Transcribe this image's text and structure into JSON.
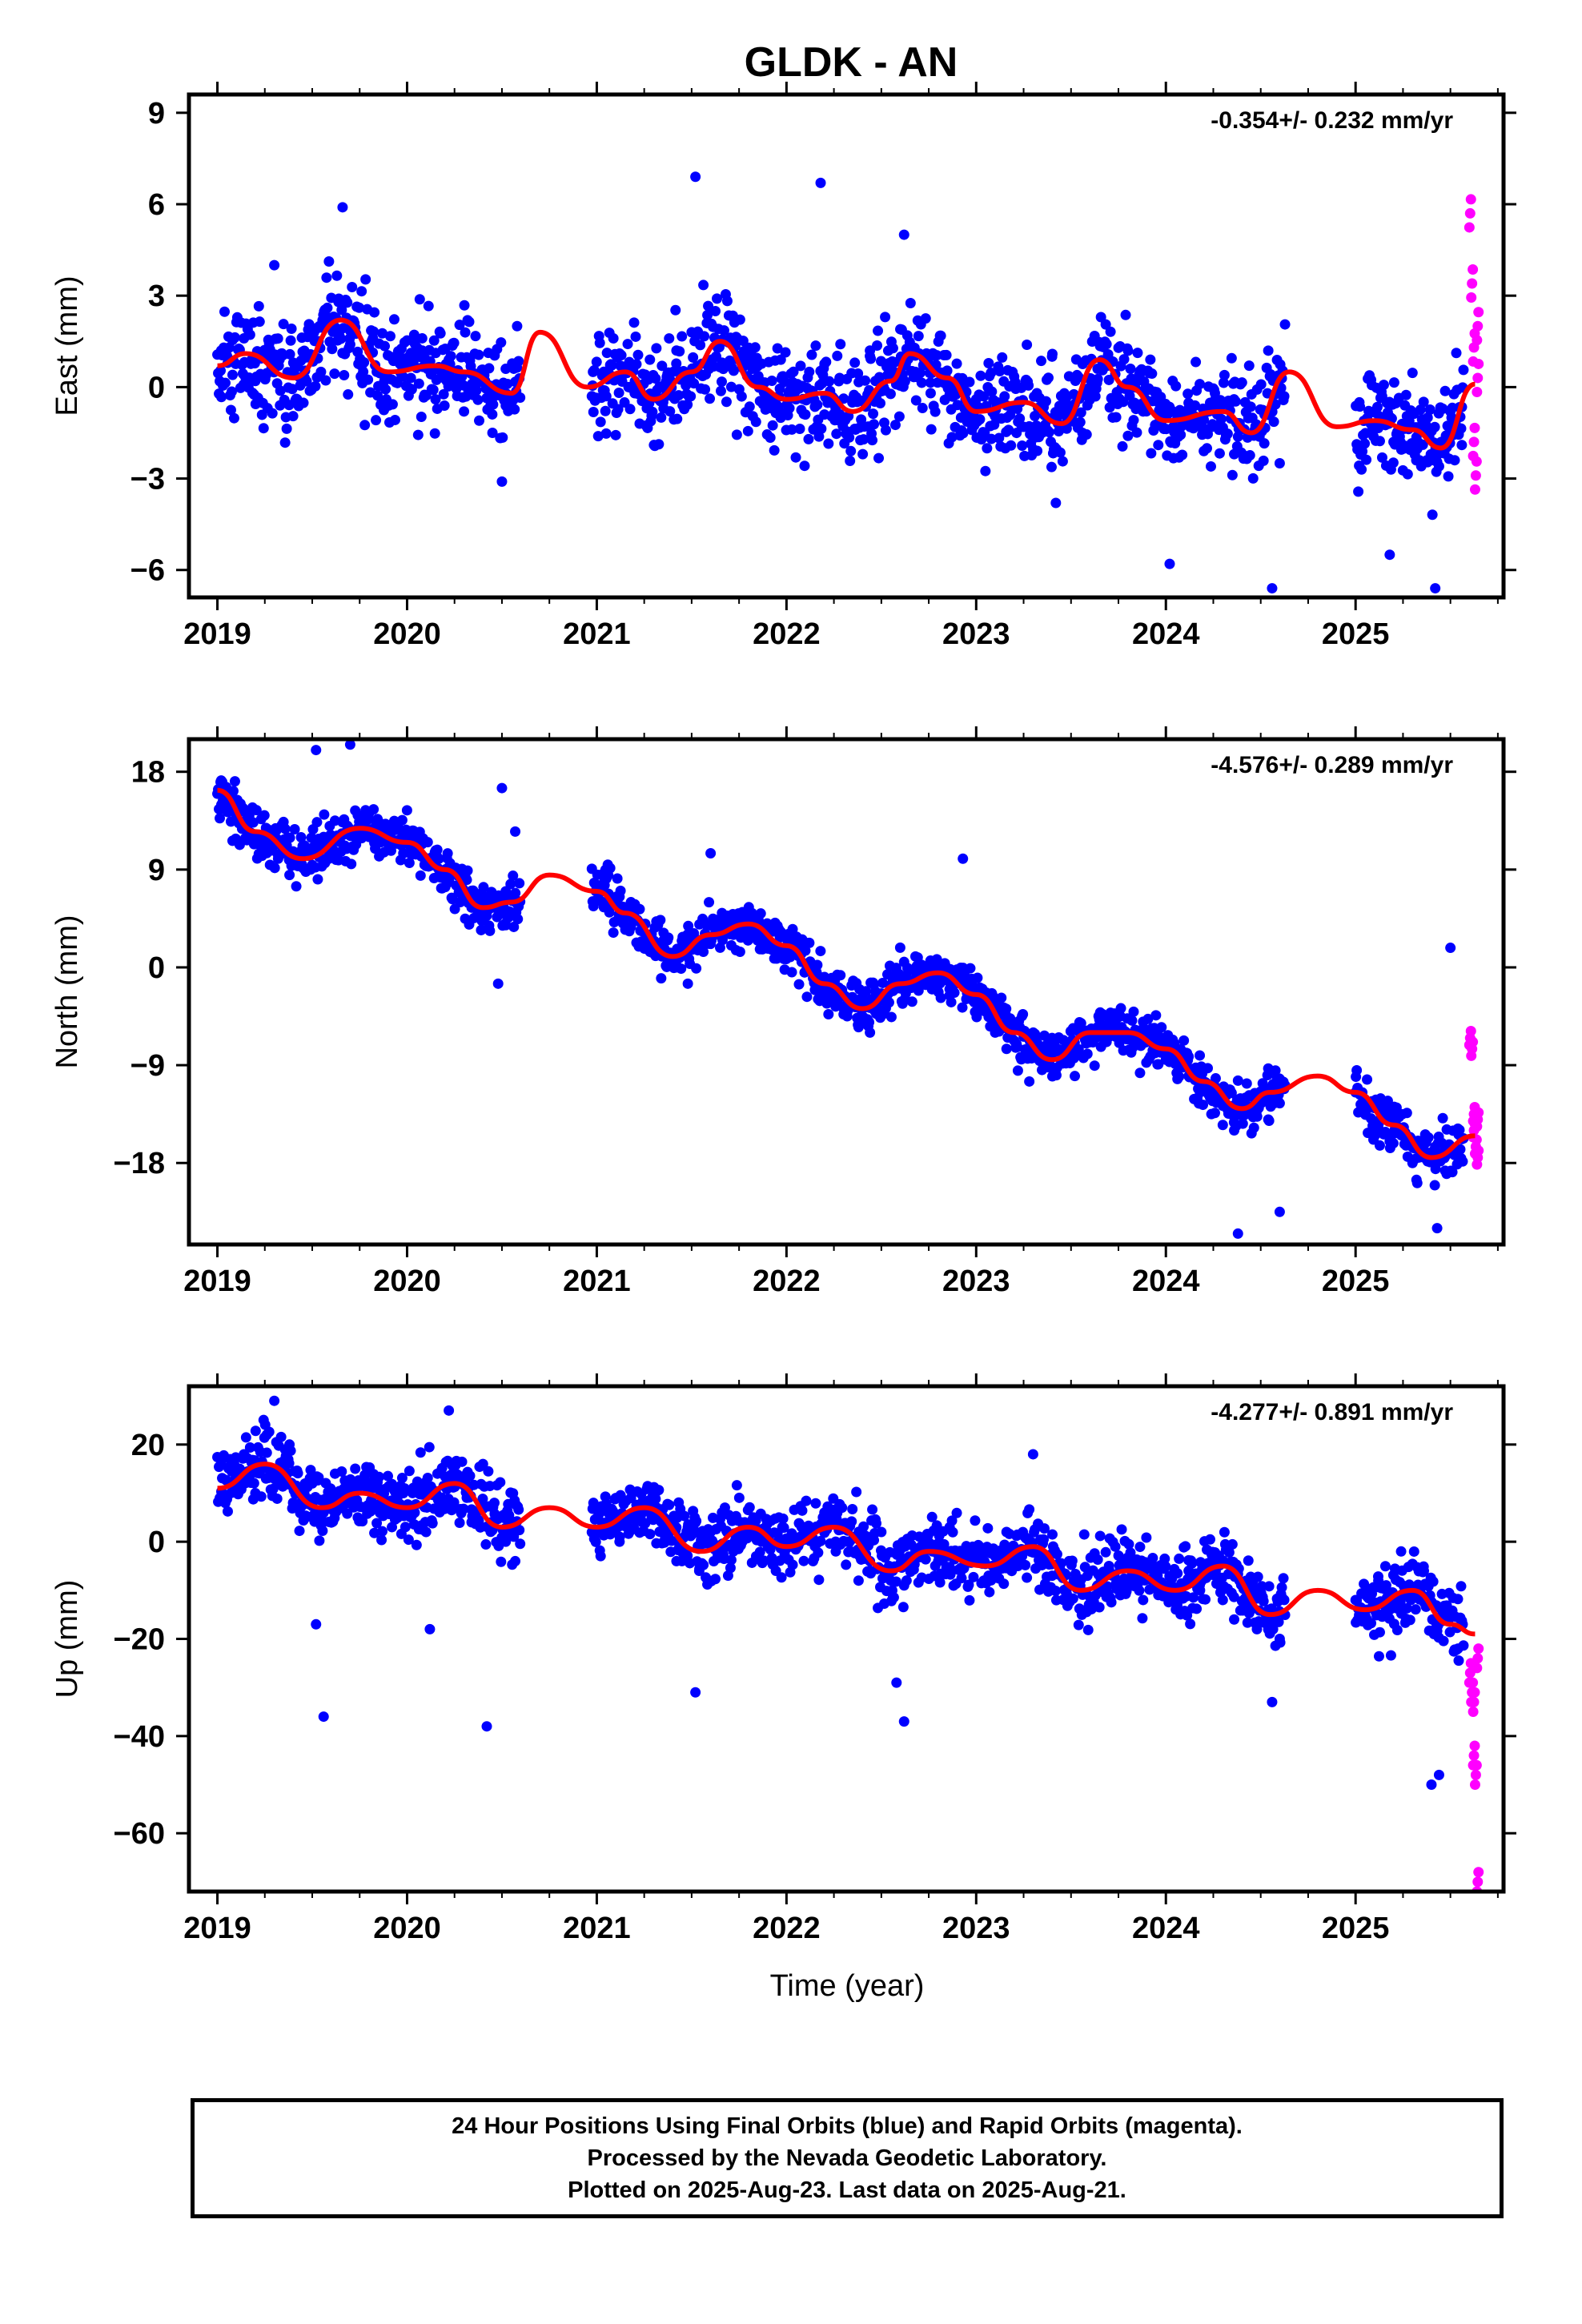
{
  "title": "GLDK - AN",
  "xlabel": "Time (year)",
  "caption": [
    "24 Hour Positions Using Final Orbits (blue) and Rapid Orbits (magenta).",
    "Processed by the Nevada Geodetic Laboratory.",
    "Plotted on 2025-Aug-23. Last data on 2025-Aug-21."
  ],
  "colors": {
    "final": "#0000ff",
    "rapid": "#ff00ff",
    "model": "#ff0000",
    "axis": "#000000"
  },
  "chart_data": [
    {
      "type": "scatter",
      "component": "East",
      "ylabel": "East (mm)",
      "rate": "-0.354+/- 0.232 mm/yr",
      "xlim": [
        2018.85,
        2025.78
      ],
      "ylim": [
        -6.9,
        9.6
      ],
      "xticks": [
        2019,
        2020,
        2021,
        2022,
        2023,
        2024,
        2025
      ],
      "yticks": [
        -6,
        -3,
        0,
        3,
        6,
        9
      ],
      "grid": false,
      "model": {
        "name": "model fit",
        "x": [
          2019.0,
          2019.15,
          2019.4,
          2019.65,
          2019.9,
          2020.15,
          2020.3,
          2020.55,
          2020.7,
          2020.95,
          2021.15,
          2021.3,
          2021.5,
          2021.65,
          2021.85,
          2022.0,
          2022.2,
          2022.35,
          2022.55,
          2022.65,
          2022.85,
          2023.0,
          2023.25,
          2023.45,
          2023.65,
          2023.8,
          2024.0,
          2024.3,
          2024.45,
          2024.65,
          2024.9,
          2025.1,
          2025.3,
          2025.45,
          2025.63
        ],
        "y": [
          0.7,
          1.1,
          0.3,
          2.2,
          0.5,
          0.7,
          0.5,
          -0.2,
          1.8,
          0.0,
          0.5,
          -0.4,
          0.5,
          1.5,
          0.0,
          -0.4,
          -0.2,
          -0.8,
          0.2,
          1.1,
          0.3,
          -0.8,
          -0.5,
          -1.2,
          0.9,
          0.0,
          -1.1,
          -0.8,
          -1.5,
          0.5,
          -1.3,
          -1.1,
          -1.4,
          -2.0,
          0.1
        ]
      },
      "final_points": {
        "x": [
          2019.02,
          2019.08,
          2019.14,
          2019.2,
          2019.27,
          2019.33,
          2019.4,
          2019.46,
          2019.52,
          2019.58,
          2019.64,
          2019.7,
          2019.76,
          2019.82,
          2019.88,
          2019.95,
          2020.02,
          2020.08,
          2020.15,
          2020.22,
          2020.3,
          2020.38,
          2020.45,
          2020.52,
          2020.58,
          2020.98,
          2021.05,
          2021.12,
          2021.2,
          2021.28,
          2021.35,
          2021.42,
          2021.5,
          2021.58,
          2021.66,
          2021.74,
          2021.82,
          2021.9,
          2021.97,
          2022.05,
          2022.12,
          2022.2,
          2022.28,
          2022.36,
          2022.44,
          2022.52,
          2022.6,
          2022.68,
          2022.76,
          2022.84,
          2022.92,
          2023.0,
          2023.08,
          2023.16,
          2023.24,
          2023.32,
          2023.4,
          2023.48,
          2023.56,
          2023.64,
          2023.72,
          2023.8,
          2023.88,
          2023.96,
          2024.04,
          2024.12,
          2024.2,
          2024.28,
          2024.36,
          2024.44,
          2024.52,
          2024.6,
          2025.02,
          2025.08,
          2025.14,
          2025.2,
          2025.26,
          2025.32,
          2025.38,
          2025.44,
          2025.5,
          2025.56,
          2019.3,
          2019.66,
          2020.5,
          2021.52,
          2022.18,
          2022.62,
          2023.42,
          2024.02,
          2024.56,
          2025.18,
          2025.42
        ],
        "y": [
          1.2,
          0.4,
          1.6,
          0.2,
          1.0,
          -0.6,
          0.8,
          0.3,
          1.9,
          2.6,
          2.9,
          1.4,
          0.7,
          1.6,
          0.2,
          0.9,
          0.3,
          1.2,
          -0.4,
          0.9,
          -0.8,
          -1.1,
          -1.5,
          0.6,
          2.0,
          0.5,
          -0.3,
          1.1,
          -0.2,
          0.9,
          -0.5,
          1.2,
          1.8,
          2.1,
          0.8,
          1.6,
          0.6,
          -0.6,
          0.9,
          -0.4,
          0.5,
          -0.9,
          0.3,
          0.8,
          1.2,
          2.3,
          1.9,
          0.5,
          -0.2,
          0.1,
          -1.0,
          -0.4,
          -1.7,
          -0.6,
          -1.3,
          -0.2,
          1.0,
          -0.3,
          -1.5,
          0.6,
          -1.0,
          -1.6,
          -0.8,
          -1.9,
          -1.3,
          -0.7,
          -2.1,
          -1.4,
          -2.2,
          -1.6,
          -0.9,
          -2.5,
          -0.5,
          -1.2,
          -0.3,
          -1.8,
          -0.6,
          -2.4,
          -1.0,
          -2.6,
          -0.8,
          -1.9,
          4.0,
          5.9,
          -3.1,
          6.9,
          6.7,
          5.0,
          -3.8,
          -5.8,
          -6.6,
          -5.5,
          -6.6
        ]
      },
      "rapid_points": {
        "x": [
          2025.6,
          2025.61,
          2025.62,
          2025.62,
          2025.63,
          2025.64,
          2025.64
        ],
        "y": [
          5.7,
          3.4,
          1.3,
          -1.8,
          -2.9,
          0.3,
          2.0
        ]
      }
    },
    {
      "type": "scatter",
      "component": "North",
      "ylabel": "North (mm)",
      "rate": "-4.576+/- 0.289 mm/yr",
      "xlim": [
        2018.85,
        2025.78
      ],
      "ylim": [
        -25.5,
        21
      ],
      "xticks": [
        2019,
        2020,
        2021,
        2022,
        2023,
        2024,
        2025
      ],
      "yticks": [
        -18,
        -9,
        0,
        9,
        18
      ],
      "grid": false,
      "model": {
        "name": "model fit",
        "x": [
          2019.0,
          2019.2,
          2019.45,
          2019.75,
          2020.0,
          2020.2,
          2020.4,
          2020.55,
          2020.75,
          2021.0,
          2021.15,
          2021.4,
          2021.6,
          2021.8,
          2022.0,
          2022.2,
          2022.4,
          2022.6,
          2022.8,
          2023.0,
          2023.2,
          2023.4,
          2023.6,
          2023.8,
          2024.0,
          2024.2,
          2024.4,
          2024.55,
          2024.8,
          2025.0,
          2025.2,
          2025.4,
          2025.63
        ],
        "y": [
          16.3,
          12.5,
          10.0,
          12.8,
          11.5,
          9.0,
          5.5,
          6.0,
          8.5,
          7.0,
          5.0,
          1.0,
          3.0,
          4.0,
          2.0,
          -1.5,
          -3.8,
          -1.5,
          -0.5,
          -2.5,
          -6.0,
          -8.5,
          -6.0,
          -6.0,
          -7.5,
          -10.5,
          -13.0,
          -11.5,
          -10.0,
          -11.5,
          -14.5,
          -17.5,
          -15.5
        ]
      },
      "final_points": {
        "x": [
          2019.02,
          2019.06,
          2019.1,
          2019.15,
          2019.2,
          2019.26,
          2019.32,
          2019.38,
          2019.44,
          2019.5,
          2019.56,
          2019.62,
          2019.68,
          2019.74,
          2019.8,
          2019.86,
          2019.92,
          2019.98,
          2020.04,
          2020.1,
          2020.16,
          2020.22,
          2020.28,
          2020.34,
          2020.4,
          2020.46,
          2020.52,
          2020.57,
          2021.0,
          2021.06,
          2021.12,
          2021.18,
          2021.24,
          2021.3,
          2021.36,
          2021.42,
          2021.48,
          2021.54,
          2021.6,
          2021.66,
          2021.72,
          2021.78,
          2021.84,
          2021.9,
          2021.96,
          2022.02,
          2022.08,
          2022.14,
          2022.2,
          2022.26,
          2022.32,
          2022.38,
          2022.44,
          2022.5,
          2022.56,
          2022.62,
          2022.68,
          2022.74,
          2022.8,
          2022.86,
          2022.92,
          2022.98,
          2023.04,
          2023.1,
          2023.16,
          2023.22,
          2023.28,
          2023.34,
          2023.4,
          2023.46,
          2023.52,
          2023.58,
          2023.64,
          2023.7,
          2023.76,
          2023.82,
          2023.88,
          2023.94,
          2024.0,
          2024.06,
          2024.12,
          2024.18,
          2024.24,
          2024.3,
          2024.36,
          2024.42,
          2024.48,
          2024.54,
          2024.6,
          2025.0,
          2025.06,
          2025.12,
          2025.18,
          2025.24,
          2025.3,
          2025.36,
          2025.42,
          2025.48,
          2025.54,
          2019.52,
          2019.7,
          2020.48,
          2020.5,
          2021.6,
          2022.93,
          2024.38,
          2024.6,
          2025.43,
          2025.5
        ],
        "y": [
          17.2,
          15.0,
          14.2,
          13.0,
          12.0,
          11.5,
          10.0,
          8.5,
          9.5,
          11.0,
          12.0,
          13.5,
          12.5,
          14.0,
          12.0,
          11.5,
          12.5,
          10.5,
          11.0,
          9.5,
          10.0,
          8.0,
          6.0,
          5.5,
          4.5,
          5.5,
          7.0,
          12.5,
          7.5,
          8.5,
          6.5,
          6.0,
          4.0,
          2.0,
          1.0,
          0.0,
          -1.5,
          2.5,
          4.0,
          5.0,
          3.0,
          4.5,
          3.0,
          2.5,
          3.5,
          1.0,
          0.5,
          -1.0,
          -2.5,
          -3.0,
          -4.5,
          -5.5,
          -6.0,
          -3.0,
          -1.0,
          0.5,
          1.0,
          -0.5,
          0.0,
          -2.0,
          -1.5,
          -3.0,
          -4.0,
          -6.0,
          -7.5,
          -9.5,
          -10.5,
          -8.0,
          -6.5,
          -8.5,
          -10.0,
          -7.0,
          -5.5,
          -6.0,
          -4.5,
          -6.5,
          -5.0,
          -7.5,
          -8.5,
          -9.0,
          -10.0,
          -11.5,
          -13.5,
          -14.5,
          -15.0,
          -12.0,
          -13.0,
          -14.0,
          -12.5,
          -11.5,
          -13.0,
          -14.5,
          -16.0,
          -15.0,
          -18.0,
          -17.5,
          -16.5,
          -19.0,
          -17.0,
          20.0,
          20.5,
          -1.5,
          16.5,
          10.5,
          10.0,
          -24.5,
          -22.5,
          -24.0,
          1.8
        ],
        "rapid_note": ""
      },
      "rapid_points": {
        "x": [
          2025.6,
          2025.61,
          2025.62,
          2025.62,
          2025.63,
          2025.64,
          2025.64
        ],
        "y": [
          -6.5,
          -7.5,
          -13.5,
          -15.0,
          -16.5,
          -17.5,
          -14.0
        ]
      }
    },
    {
      "type": "scatter",
      "component": "Up",
      "ylabel": "Up (mm)",
      "rate": "-4.277+/- 0.891 mm/yr",
      "xlim": [
        2018.85,
        2025.78
      ],
      "ylim": [
        -72,
        32
      ],
      "xticks": [
        2019,
        2020,
        2021,
        2022,
        2023,
        2024,
        2025
      ],
      "yticks": [
        -60,
        -40,
        -20,
        0,
        20
      ],
      "grid": false,
      "model": {
        "name": "model fit",
        "x": [
          2019.0,
          2019.25,
          2019.55,
          2019.75,
          2020.0,
          2020.25,
          2020.5,
          2020.75,
          2021.0,
          2021.25,
          2021.55,
          2021.8,
          2022.0,
          2022.25,
          2022.55,
          2022.75,
          2023.05,
          2023.3,
          2023.55,
          2023.8,
          2024.05,
          2024.3,
          2024.55,
          2024.8,
          2025.05,
          2025.3,
          2025.5,
          2025.63
        ],
        "y": [
          11.0,
          16.0,
          7.0,
          10.0,
          7.0,
          12.0,
          3.0,
          7.0,
          3.0,
          7.0,
          -2.0,
          3.0,
          -1.0,
          3.0,
          -6.0,
          -2.0,
          -5.0,
          -1.0,
          -10.0,
          -6.0,
          -10.0,
          -5.0,
          -15.0,
          -10.0,
          -14.0,
          -10.0,
          -17.0,
          -19.0
        ]
      },
      "final_points": {
        "x": [
          2019.02,
          2019.08,
          2019.14,
          2019.2,
          2019.26,
          2019.32,
          2019.38,
          2019.44,
          2019.5,
          2019.56,
          2019.62,
          2019.68,
          2019.74,
          2019.8,
          2019.86,
          2019.92,
          2019.98,
          2020.04,
          2020.1,
          2020.16,
          2020.22,
          2020.28,
          2020.34,
          2020.4,
          2020.46,
          2020.52,
          2020.57,
          2021.0,
          2021.06,
          2021.12,
          2021.18,
          2021.24,
          2021.3,
          2021.36,
          2021.42,
          2021.48,
          2021.54,
          2021.6,
          2021.66,
          2021.72,
          2021.78,
          2021.84,
          2021.9,
          2021.96,
          2022.02,
          2022.08,
          2022.14,
          2022.2,
          2022.26,
          2022.32,
          2022.38,
          2022.44,
          2022.5,
          2022.56,
          2022.62,
          2022.68,
          2022.74,
          2022.8,
          2022.86,
          2022.92,
          2022.98,
          2023.04,
          2023.1,
          2023.16,
          2023.22,
          2023.28,
          2023.34,
          2023.4,
          2023.46,
          2023.52,
          2023.58,
          2023.64,
          2023.7,
          2023.76,
          2023.82,
          2023.88,
          2023.94,
          2024.0,
          2024.06,
          2024.12,
          2024.18,
          2024.24,
          2024.3,
          2024.36,
          2024.42,
          2024.48,
          2024.54,
          2024.6,
          2025.0,
          2025.06,
          2025.12,
          2025.18,
          2025.24,
          2025.3,
          2025.36,
          2025.42,
          2025.48,
          2025.54,
          2019.3,
          2019.52,
          2019.56,
          2020.12,
          2020.22,
          2020.42,
          2021.52,
          2022.58,
          2022.62,
          2023.3,
          2024.56,
          2025.4,
          2025.44
        ],
        "y": [
          16.0,
          12.0,
          18.0,
          10.0,
          22.0,
          14.0,
          20.0,
          8.0,
          12.0,
          6.0,
          14.0,
          10.0,
          5.0,
          12.0,
          8.0,
          3.0,
          10.0,
          6.0,
          2.0,
          14.0,
          8.0,
          12.0,
          4.0,
          16.0,
          8.0,
          0.0,
          -4.0,
          2.0,
          6.0,
          0.0,
          9.0,
          4.0,
          10.0,
          2.0,
          -4.0,
          3.0,
          -6.0,
          2.0,
          6.0,
          -2.0,
          4.0,
          -3.0,
          2.0,
          5.0,
          -1.0,
          3.0,
          -4.0,
          6.0,
          -2.0,
          0.0,
          -8.0,
          -4.0,
          2.0,
          -6.0,
          -9.0,
          -2.0,
          1.0,
          -4.0,
          3.0,
          -6.0,
          -2.0,
          -8.0,
          -3.0,
          2.0,
          -5.0,
          0.0,
          -4.0,
          -7.0,
          -12.0,
          -8.0,
          -14.0,
          -9.0,
          -5.0,
          -11.0,
          -7.0,
          -12.0,
          -8.0,
          -9.0,
          -13.0,
          -6.0,
          -10.0,
          -4.0,
          -12.0,
          -16.0,
          -10.0,
          -18.0,
          -14.0,
          -20.0,
          -12.0,
          -16.0,
          -8.0,
          -14.0,
          -2.0,
          -10.0,
          -6.0,
          -18.0,
          -14.0,
          -22.0,
          29.0,
          -17.0,
          -36.0,
          -18.0,
          27.0,
          -38.0,
          -31.0,
          -29.0,
          -37.0,
          18.0,
          -33.0,
          -50.0,
          -48.0
        ]
      },
      "rapid_points": {
        "x": [
          2025.6,
          2025.61,
          2025.62,
          2025.62,
          2025.63,
          2025.64,
          2025.64
        ],
        "y": [
          -27.0,
          -31.0,
          -33.0,
          -44.0,
          -48.0,
          -70.0,
          -24.0
        ]
      }
    }
  ]
}
